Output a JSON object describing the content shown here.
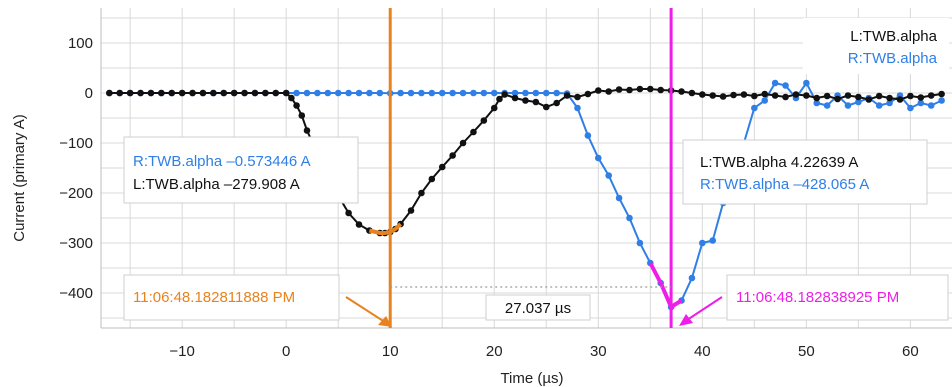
{
  "chart_data": {
    "type": "line",
    "xlabel": "Time (µs)",
    "ylabel": "Current (primary A)",
    "xlim": [
      -17.8,
      64
    ],
    "ylim": [
      -470,
      170
    ],
    "x_ticks": [
      -10,
      0,
      10,
      20,
      30,
      40,
      50,
      60
    ],
    "y_ticks": [
      100,
      0,
      -100,
      -200,
      -300,
      -400
    ],
    "grid": true,
    "legend": {
      "placement": "top-right",
      "entries": [
        "L:TWB.alpha",
        "R:TWB.alpha"
      ]
    },
    "colors": {
      "left_series": "#111111",
      "right_series": "#2f7fe6",
      "cursor_1": "#e8821e",
      "cursor_2": "#ee1ee8",
      "grid": "#d9d9d9"
    },
    "series": [
      {
        "name": "L:TWB.alpha",
        "x": [
          -17,
          -16,
          -15,
          -14,
          -13,
          -12,
          -11,
          -10,
          -9,
          -8,
          -7,
          -6,
          -5,
          -4,
          -3,
          -2,
          -1,
          0,
          0.5,
          1,
          1.5,
          2,
          3,
          4,
          5,
          6,
          7,
          8,
          9,
          9.5,
          10,
          10.5,
          11,
          12,
          13,
          14,
          15,
          16,
          17,
          18,
          19,
          20,
          20.5,
          21,
          22,
          23,
          24,
          25,
          26,
          27,
          28,
          29,
          30,
          31,
          32,
          33,
          34,
          35,
          36,
          37,
          38,
          39,
          40,
          41,
          42,
          43,
          44,
          45,
          46,
          47,
          48,
          49,
          50,
          51,
          52,
          53,
          54,
          55,
          56,
          57,
          58,
          59,
          60,
          61,
          62,
          63
        ],
        "y": [
          0,
          0,
          0,
          0,
          0,
          0,
          0,
          0,
          0,
          0,
          0,
          0,
          0,
          0,
          0,
          0,
          0,
          0,
          -10,
          -25,
          -45,
          -75,
          -120,
          -165,
          -205,
          -240,
          -263,
          -275,
          -280,
          -280,
          -278,
          -272,
          -262,
          -235,
          -200,
          -172,
          -148,
          -125,
          -100,
          -78,
          -55,
          -30,
          -12,
          -3,
          -10,
          -15,
          -18,
          -28,
          -20,
          -5,
          -8,
          -2,
          5,
          3,
          7,
          6,
          8,
          8,
          6,
          5,
          3,
          0,
          -3,
          -5,
          -7,
          -4,
          -3,
          -6,
          -2,
          -5,
          -8,
          -3,
          -5,
          -10,
          -6,
          -12,
          -5,
          -8,
          -13,
          -6,
          -10,
          -13,
          -6,
          -9,
          -5,
          -2
        ]
      },
      {
        "name": "R:TWB.alpha",
        "x": [
          -17,
          -16,
          -15,
          -14,
          -13,
          -12,
          -11,
          -10,
          -9,
          -8,
          -7,
          -6,
          -5,
          -4,
          -3,
          -2,
          -1,
          0,
          1,
          2,
          3,
          4,
          5,
          6,
          7,
          8,
          9,
          10,
          11,
          12,
          13,
          14,
          15,
          16,
          17,
          18,
          19,
          20,
          21,
          22,
          23,
          24,
          25,
          26,
          27,
          28,
          29,
          30,
          31,
          32,
          33,
          34,
          35,
          36,
          37,
          38,
          39,
          40,
          41,
          42,
          43,
          44,
          45,
          46,
          47,
          48,
          49,
          50,
          51,
          52,
          53,
          54,
          55,
          56,
          57,
          58,
          59,
          60,
          61,
          62,
          63
        ],
        "y": [
          0,
          0,
          0,
          0,
          0,
          0,
          0,
          0,
          0,
          0,
          0,
          0,
          0,
          0,
          0,
          0,
          0,
          0,
          0,
          0,
          0,
          0,
          0,
          0,
          0,
          0,
          0,
          -0.5,
          0,
          0,
          0,
          0,
          0,
          0,
          0,
          0,
          0,
          0,
          0,
          0,
          0,
          0,
          0,
          0,
          -1,
          -30,
          -85,
          -130,
          -165,
          -210,
          -250,
          -300,
          -340,
          -380,
          -428,
          -415,
          -370,
          -300,
          -295,
          -220,
          -185,
          -100,
          -30,
          -15,
          20,
          15,
          -10,
          20,
          -20,
          -25,
          -5,
          -25,
          -18,
          -10,
          -25,
          -20,
          -5,
          -30,
          -20,
          -25,
          -15
        ],
        "x_extra": [],
        "y_extra": []
      }
    ],
    "cursors": [
      {
        "x": 10,
        "timestamp": "11:06:48.182811888 PM",
        "readout_right": "R:TWB.alpha –0.573446 A",
        "readout_left": "L:TWB.alpha –279.908 A"
      },
      {
        "x": 37,
        "timestamp": "11:06:48.182838925 PM",
        "readout_left": "L:TWB.alpha 4.22639 A",
        "readout_right": "R:TWB.alpha –428.065 A"
      }
    ],
    "delta_label": "27.037 µs"
  }
}
